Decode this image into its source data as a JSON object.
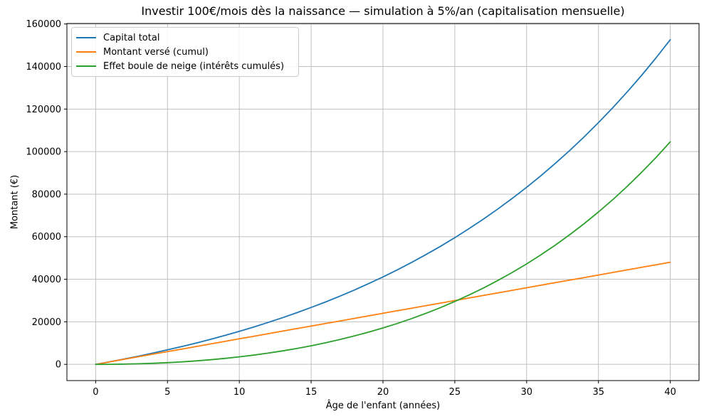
{
  "chart_data": {
    "type": "line",
    "title": "Investir 100€/mois dès la naissance — simulation à 5%/an (capitalisation mensuelle)",
    "xlabel": "Âge de l'enfant (années)",
    "ylabel": "Montant (€)",
    "x": [
      0,
      1,
      2,
      3,
      4,
      5,
      6,
      7,
      8,
      9,
      10,
      11,
      12,
      13,
      14,
      15,
      16,
      17,
      18,
      19,
      20,
      21,
      22,
      23,
      24,
      25,
      26,
      27,
      28,
      29,
      30,
      31,
      32,
      33,
      34,
      35,
      36,
      37,
      38,
      39,
      40
    ],
    "series": [
      {
        "name": "Capital total",
        "color": "#1f77b4",
        "values": [
          0,
          1228,
          2519,
          3875,
          5301,
          6801,
          8376,
          10033,
          11774,
          13604,
          15528,
          17551,
          19676,
          21911,
          24260,
          26729,
          29324,
          32052,
          34920,
          37935,
          41103,
          44434,
          47935,
          51616,
          55484,
          59551,
          63826,
          68319,
          73042,
          78007,
          83226,
          88712,
          94478,
          100540,
          106911,
          113609,
          120649,
          128050,
          135829,
          144006,
          152602
        ]
      },
      {
        "name": "Montant versé (cumul)",
        "color": "#ff7f0e",
        "values": [
          0,
          1200,
          2400,
          3600,
          4800,
          6000,
          7200,
          8400,
          9600,
          10800,
          12000,
          13200,
          14400,
          15600,
          16800,
          18000,
          19200,
          20400,
          21600,
          22800,
          24000,
          25200,
          26400,
          27600,
          28800,
          30000,
          31200,
          32400,
          33600,
          34800,
          36000,
          37200,
          38400,
          39600,
          40800,
          42000,
          43200,
          44400,
          45600,
          46800,
          48000
        ]
      },
      {
        "name": "Effet boule de neige (intérêts cumulés)",
        "color": "#2ca02c",
        "values": [
          0,
          28,
          119,
          275,
          501,
          801,
          1176,
          1633,
          2174,
          2804,
          3528,
          4351,
          5276,
          6311,
          7460,
          8729,
          10124,
          11652,
          13320,
          15135,
          17103,
          19234,
          21535,
          24016,
          26684,
          29551,
          32626,
          35919,
          39442,
          43207,
          47226,
          51512,
          56078,
          60940,
          66111,
          71609,
          77449,
          83650,
          90229,
          97206,
          104602
        ]
      }
    ],
    "xlim": [
      -2,
      42
    ],
    "ylim": [
      -7630,
      160232
    ],
    "x_ticks": [
      0,
      5,
      10,
      15,
      20,
      25,
      30,
      35,
      40
    ],
    "y_ticks": [
      0,
      20000,
      40000,
      60000,
      80000,
      100000,
      120000,
      140000,
      160000
    ],
    "grid": true,
    "grid_color": "#c0c0c0",
    "spine_color": "#000000",
    "background": "#ffffff",
    "legend_position": "upper left"
  }
}
